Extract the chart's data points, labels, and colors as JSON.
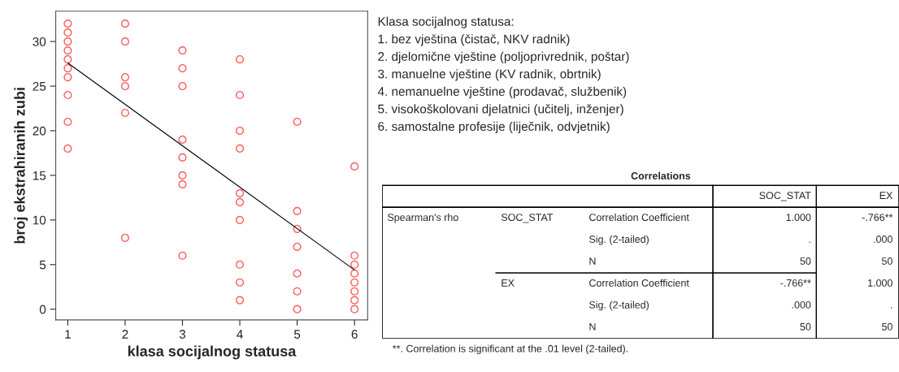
{
  "chart_data": [
    {
      "type": "scatter",
      "xlabel": "klasa socijalnog statusa",
      "ylabel": "broj ekstrahiranih zubi",
      "xlim": [
        0.79,
        6.23
      ],
      "ylim": [
        -1.2,
        33.4
      ],
      "xticks": [
        1,
        2,
        3,
        4,
        5,
        6
      ],
      "yticks": [
        0,
        5,
        10,
        15,
        20,
        25,
        30
      ],
      "grid": false,
      "legend": false,
      "series": [
        {
          "type": "scatter",
          "color": "#ff5a5a",
          "marker": "circle",
          "x": [
            1,
            1,
            1,
            1,
            1,
            1,
            1,
            1,
            1,
            1,
            2,
            2,
            2,
            2,
            2,
            2,
            3,
            3,
            3,
            3,
            3,
            3,
            3,
            3,
            4,
            4,
            4,
            4,
            4,
            4,
            4,
            4,
            4,
            4,
            5,
            5,
            5,
            5,
            5,
            5,
            5,
            6,
            6,
            6,
            6,
            6,
            6,
            6,
            6
          ],
          "values": [
            32,
            31,
            30,
            29,
            28,
            27,
            26,
            24,
            21,
            18,
            32,
            30,
            26,
            25,
            22,
            8,
            29,
            27,
            25,
            19,
            17,
            15,
            14,
            6,
            28,
            24,
            20,
            18,
            13,
            12,
            10,
            5,
            3,
            1,
            21,
            11,
            9,
            7,
            4,
            2,
            0,
            16,
            6,
            5,
            4,
            3,
            2,
            1,
            0
          ]
        },
        {
          "type": "line",
          "color": "#000000",
          "marker": "none",
          "line_style": "solid",
          "x": [
            1,
            6
          ],
          "values": [
            27.6,
            4.4
          ]
        }
      ],
      "annotations": [
        "Klasa socijalnog statusa:",
        "1. bez vještina (čistač, NKV radnik)",
        "2. djelomične vještine (poljoprivrednik, poštar)",
        "3. manuelne vještine (KV radnik, obrtnik)",
        "4. nemanuelne vještine (prodavač, službenik)",
        "5. visokoškolovani djelatnici (učitelj, inženjer)",
        "6. samostalne profesije (liječnik, odvjetnik)"
      ]
    },
    {
      "type": "other",
      "title": "Correlations",
      "annotations": [
        "SOC_STAT",
        "EX",
        "Spearman's rho",
        "SOC_STAT",
        "Correlation Coefficient",
        "1.000",
        "-.766**",
        "Sig. (2-tailed)",
        ".",
        ".000",
        "N",
        "50",
        "50",
        "EX",
        "Correlation Coefficient",
        "-.766**",
        "1.000",
        "Sig. (2-tailed)",
        ".000",
        ".",
        "N",
        "50",
        "50",
        "**. Correlation is significant at the .01 level (2-tailed)."
      ]
    }
  ]
}
